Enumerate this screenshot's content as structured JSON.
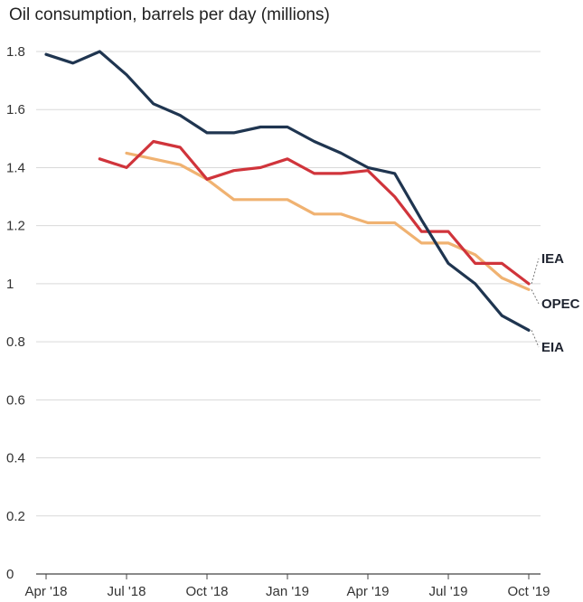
{
  "chart_data": {
    "type": "line",
    "title": "Oil consumption, barrels per day (millions)",
    "xlabel": "",
    "ylabel": "",
    "ylim": [
      0,
      1.85
    ],
    "y_ticks": [
      0,
      0.2,
      0.4,
      0.6,
      0.8,
      1,
      1.2,
      1.4,
      1.6,
      1.8
    ],
    "y_tick_labels": [
      "0",
      "0.2",
      "0.4",
      "0.6",
      "0.8",
      "1",
      "1.2",
      "1.4",
      "1.6",
      "1.8"
    ],
    "x": [
      "2018-04",
      "2018-05",
      "2018-06",
      "2018-07",
      "2018-08",
      "2018-09",
      "2018-10",
      "2018-11",
      "2018-12",
      "2019-01",
      "2019-02",
      "2019-03",
      "2019-04",
      "2019-05",
      "2019-06",
      "2019-07",
      "2019-08",
      "2019-09",
      "2019-10"
    ],
    "x_tick_labels": [
      {
        "x": "2018-04",
        "label": "Apr '18"
      },
      {
        "x": "2018-07",
        "label": "Jul '18"
      },
      {
        "x": "2018-10",
        "label": "Oct '18"
      },
      {
        "x": "2019-01",
        "label": "Jan '19"
      },
      {
        "x": "2019-04",
        "label": "Apr '19"
      },
      {
        "x": "2019-07",
        "label": "Jul '19"
      },
      {
        "x": "2019-10",
        "label": "Oct '19"
      }
    ],
    "grid": true,
    "legend": "direct labels at line ends, right",
    "series": [
      {
        "name": "EIA",
        "color": "#1f3550",
        "values": [
          1.79,
          1.76,
          1.8,
          1.72,
          1.62,
          1.58,
          1.52,
          1.52,
          1.54,
          1.54,
          1.49,
          1.45,
          1.4,
          1.38,
          1.22,
          1.07,
          1.0,
          0.89,
          0.84
        ]
      },
      {
        "name": "IEA",
        "color": "#d0343b",
        "values": [
          null,
          null,
          1.43,
          1.4,
          1.49,
          1.47,
          1.36,
          1.39,
          1.4,
          1.43,
          1.38,
          1.38,
          1.39,
          1.3,
          1.18,
          1.18,
          1.07,
          1.07,
          1.0
        ]
      },
      {
        "name": "OPEC",
        "color": "#f0b271",
        "values": [
          null,
          null,
          null,
          1.45,
          1.43,
          1.41,
          1.36,
          1.29,
          1.29,
          1.29,
          1.24,
          1.24,
          1.21,
          1.21,
          1.14,
          1.14,
          1.1,
          1.02,
          0.98
        ]
      }
    ]
  }
}
